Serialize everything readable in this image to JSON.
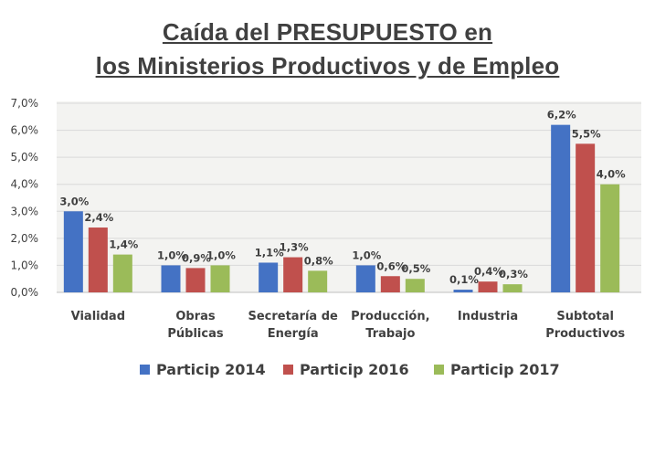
{
  "chart_data": {
    "type": "bar",
    "title": [
      "Caída del PRESUPUESTO en",
      "los Ministerios Productivos y de Empleo"
    ],
    "categories": [
      [
        "Vialidad"
      ],
      [
        "Obras",
        "Públicas"
      ],
      [
        "Secretaría de",
        "Energía"
      ],
      [
        "Producción,",
        "Trabajo"
      ],
      [
        "Industria"
      ],
      [
        "Subtotal",
        "Productivos"
      ]
    ],
    "series": [
      {
        "name": "Particip 2014",
        "color": "#4472C4",
        "values": [
          3.0,
          1.0,
          1.1,
          1.0,
          0.1,
          6.2
        ],
        "labels": [
          "3,0%",
          "1,0%",
          "1,1%",
          "1,0%",
          "0,1%",
          "6,2%"
        ]
      },
      {
        "name": "Particip 2016",
        "color": "#C0504D",
        "values": [
          2.4,
          0.9,
          1.3,
          0.6,
          0.4,
          5.5
        ],
        "labels": [
          "2,4%",
          "0,9%",
          "1,3%",
          "0,6%",
          "0,4%",
          "5,5%"
        ]
      },
      {
        "name": "Particip 2017",
        "color": "#9BBB59",
        "values": [
          1.4,
          1.0,
          0.8,
          0.5,
          0.3,
          4.0
        ],
        "labels": [
          "1,4%",
          "1,0%",
          "0,8%",
          "0,5%",
          "0,3%",
          "4,0%"
        ]
      }
    ],
    "ylim": [
      0,
      7
    ],
    "yticks": [
      "0,0%",
      "1,0%",
      "2,0%",
      "3,0%",
      "4,0%",
      "5,0%",
      "6,0%",
      "7,0%"
    ],
    "grid": true,
    "legend_position": "bottom",
    "xlabel": "",
    "ylabel": ""
  }
}
